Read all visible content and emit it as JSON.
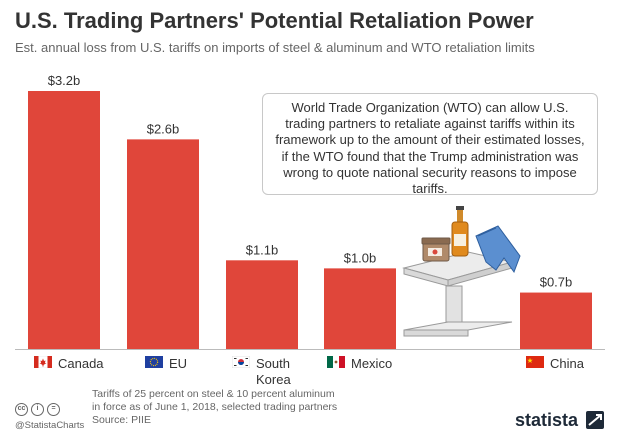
{
  "header": {
    "title": "U.S. Trading Partners' Potential Retaliation Power",
    "subtitle": "Est. annual loss from U.S. tariffs on imports of steel & aluminum and WTO retaliation limits"
  },
  "chart_data": {
    "type": "bar",
    "title": "U.S. Trading Partners' Potential Retaliation Power",
    "subtitle": "Est. annual loss from U.S. tariffs on imports of steel & aluminum and WTO retaliation limits",
    "categories": [
      "Canada",
      "EU",
      "South Korea",
      "Mexico",
      "China"
    ],
    "values": [
      3.2,
      2.6,
      1.1,
      1.0,
      0.7
    ],
    "value_labels": [
      "$3.2b",
      "$2.6b",
      "$1.1b",
      "$1.0b",
      "$0.7b"
    ],
    "unit": "billion USD",
    "ylim": [
      0,
      3.2
    ],
    "bar_color": "#e0463a",
    "grid": false,
    "xlabel": "",
    "ylabel": ""
  },
  "categories_display": [
    {
      "line1": "Canada",
      "line2": ""
    },
    {
      "line1": "EU",
      "line2": ""
    },
    {
      "line1": "South",
      "line2": "Korea"
    },
    {
      "line1": "Mexico",
      "line2": ""
    },
    {
      "line1": "China",
      "line2": ""
    }
  ],
  "annotation": {
    "text": "World Trade Organization (WTO) can allow U.S. trading partners to retaliate against tariffs within its framework up to the amount of their estimated losses, if the WTO found that the Trump administration was wrong to quote national security reasons to impose tariffs."
  },
  "footer": {
    "note_line1": "Tariffs of 25 percent on steel & 10 percent aluminum",
    "note_line2": "in force as of June 1, 2018, selected trading partners",
    "source": "Source: PIIE",
    "handle": "@StatistaCharts",
    "brand": "statista",
    "license_icons": [
      "cc",
      "i",
      "="
    ]
  },
  "colors": {
    "bar": "#e0463a",
    "title": "#333333",
    "text_muted": "#666666",
    "brand": "#1e2a38"
  }
}
